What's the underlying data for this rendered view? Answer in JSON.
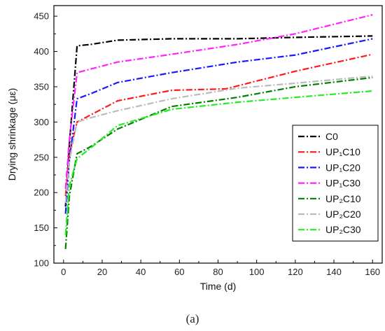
{
  "caption": "(a)",
  "chart_data": {
    "type": "line",
    "xlabel": "Time (d)",
    "ylabel": "Drying shrinkage (με)",
    "xlim": [
      -5,
      165
    ],
    "ylim": [
      100,
      465
    ],
    "xticks": [
      0,
      20,
      40,
      60,
      80,
      100,
      120,
      140,
      160
    ],
    "yticks": [
      100,
      150,
      200,
      250,
      300,
      350,
      400,
      450
    ],
    "grid": false,
    "legend_position": "right",
    "series": [
      {
        "name": "C0",
        "color": "#000000",
        "points": [
          [
            1,
            180
          ],
          [
            3,
            268
          ],
          [
            7,
            408
          ],
          [
            14,
            410
          ],
          [
            28,
            416
          ],
          [
            56,
            418
          ],
          [
            90,
            418
          ],
          [
            120,
            420
          ],
          [
            160,
            422
          ]
        ]
      },
      {
        "name": "UP₁C10",
        "color": "#ff1a1a",
        "points": [
          [
            1,
            195
          ],
          [
            3,
            255
          ],
          [
            7,
            300
          ],
          [
            14,
            310
          ],
          [
            28,
            330
          ],
          [
            56,
            345
          ],
          [
            84,
            347
          ],
          [
            120,
            372
          ],
          [
            160,
            396
          ]
        ]
      },
      {
        "name": "UP₁C20",
        "color": "#1a1aff",
        "points": [
          [
            1,
            170
          ],
          [
            3,
            245
          ],
          [
            7,
            333
          ],
          [
            14,
            340
          ],
          [
            28,
            356
          ],
          [
            56,
            370
          ],
          [
            90,
            385
          ],
          [
            120,
            395
          ],
          [
            160,
            418
          ]
        ]
      },
      {
        "name": "UP₁C30",
        "color": "#ff22ff",
        "points": [
          [
            1,
            205
          ],
          [
            3,
            275
          ],
          [
            7,
            370
          ],
          [
            14,
            375
          ],
          [
            28,
            385
          ],
          [
            56,
            396
          ],
          [
            90,
            410
          ],
          [
            120,
            425
          ],
          [
            160,
            452
          ]
        ]
      },
      {
        "name": "UP₂C10",
        "color": "#008000",
        "points": [
          [
            1,
            120
          ],
          [
            3,
            195
          ],
          [
            7,
            255
          ],
          [
            14,
            265
          ],
          [
            28,
            290
          ],
          [
            56,
            322
          ],
          [
            90,
            335
          ],
          [
            120,
            350
          ],
          [
            160,
            363
          ]
        ]
      },
      {
        "name": "UP₂C20",
        "color": "#bbbbbb",
        "points": [
          [
            1,
            185
          ],
          [
            3,
            245
          ],
          [
            7,
            300
          ],
          [
            14,
            306
          ],
          [
            28,
            316
          ],
          [
            56,
            333
          ],
          [
            90,
            348
          ],
          [
            120,
            355
          ],
          [
            160,
            365
          ]
        ]
      },
      {
        "name": "UP₂C30",
        "color": "#22ee22",
        "points": [
          [
            1,
            140
          ],
          [
            3,
            210
          ],
          [
            7,
            248
          ],
          [
            14,
            263
          ],
          [
            28,
            295
          ],
          [
            56,
            318
          ],
          [
            90,
            328
          ],
          [
            120,
            335
          ],
          [
            160,
            344
          ]
        ]
      }
    ]
  }
}
